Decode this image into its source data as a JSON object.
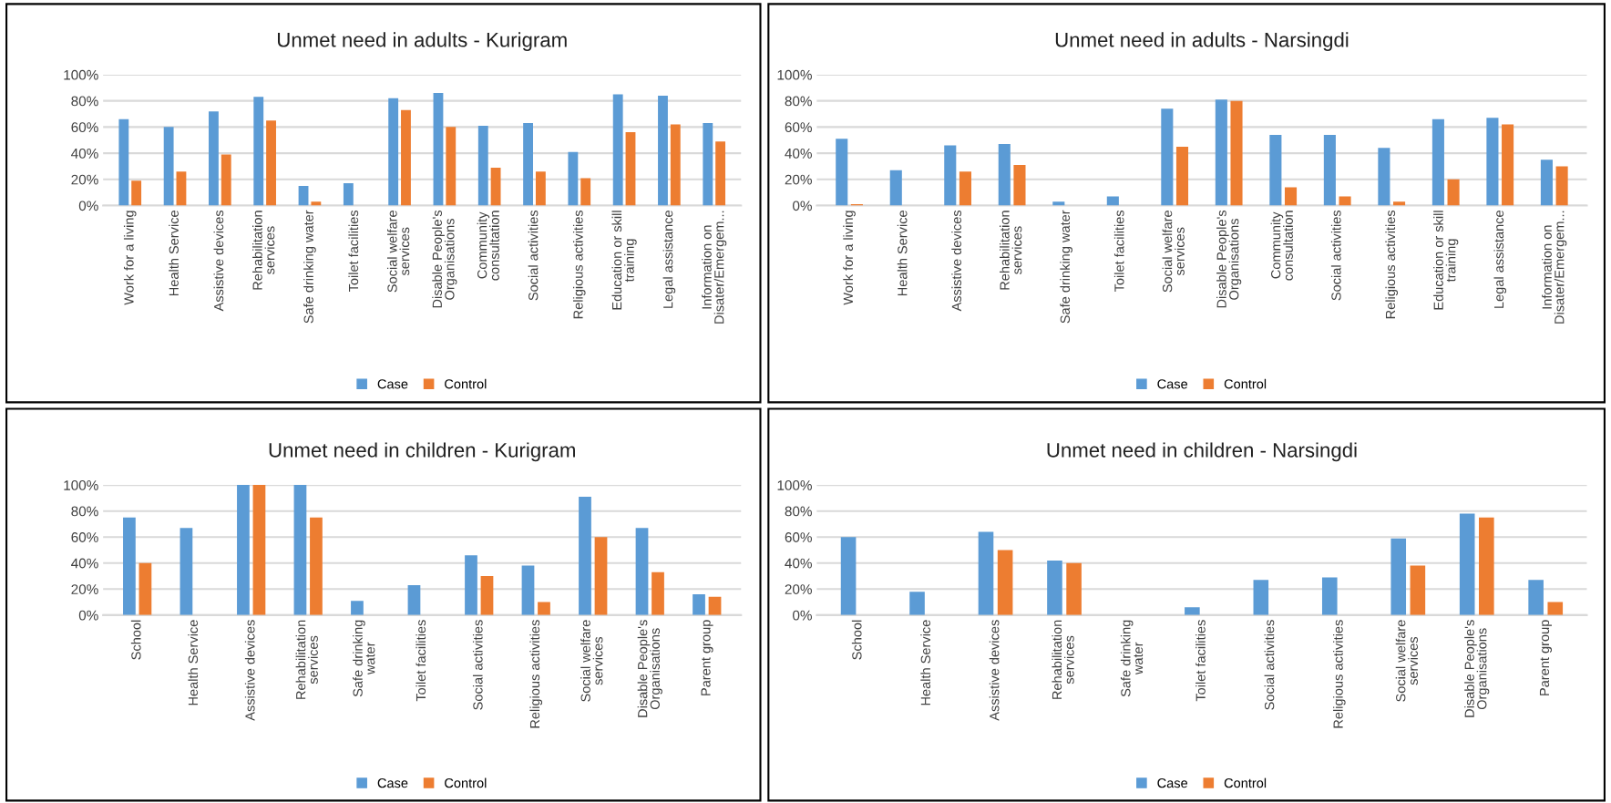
{
  "chart_data": [
    {
      "type": "bar",
      "title": "Unmet need in adults - Kurigram",
      "categories": [
        "Work for a living",
        "Health Service",
        "Assistive devices",
        "Rehabilitation\nservices",
        "Safe drinking water",
        "Toilet facilities",
        "Social welfare\nservices",
        "Disable People's\nOrganisations",
        "Community\nconsultation",
        "Social activities",
        "Religious activities",
        "Education or skill\ntraining",
        "Legal assistance",
        "Information on\nDisater/Emergem..."
      ],
      "series": [
        {
          "name": "Case",
          "color": "#5b9bd5",
          "values": [
            66,
            60,
            72,
            83,
            15,
            17,
            82,
            86,
            61,
            63,
            41,
            85,
            84,
            63
          ]
        },
        {
          "name": "Control",
          "color": "#ed7d31",
          "values": [
            19,
            26,
            39,
            65,
            3,
            0,
            73,
            60,
            29,
            26,
            21,
            56,
            62,
            49
          ]
        }
      ],
      "ylim": [
        0,
        100
      ],
      "yticks": [
        {
          "value": 0,
          "label": "0%"
        },
        {
          "value": 20,
          "label": "20%"
        },
        {
          "value": 40,
          "label": "40%"
        },
        {
          "value": 60,
          "label": "60%"
        },
        {
          "value": 80,
          "label": "80%"
        },
        {
          "value": 100,
          "label": "100%"
        }
      ],
      "grid": "y",
      "legend": "bottom"
    },
    {
      "type": "bar",
      "title": "Unmet need in adults - Narsingdi",
      "categories": [
        "Work for a living",
        "Health Service",
        "Assistive devices",
        "Rehabilitation\nservices",
        "Safe drinking water",
        "Toilet facilities",
        "Social welfare\nservices",
        "Disable People's\nOrganisations",
        "Community\nconsultation",
        "Social activities",
        "Religious activities",
        "Education or skill\ntraining",
        "Legal assistance",
        "Information on\nDisater/Emergem..."
      ],
      "series": [
        {
          "name": "Case",
          "color": "#5b9bd5",
          "values": [
            51,
            27,
            46,
            47,
            3,
            7,
            74,
            81,
            54,
            54,
            44,
            66,
            67,
            35
          ]
        },
        {
          "name": "Control",
          "color": "#ed7d31",
          "values": [
            1,
            0,
            26,
            31,
            0,
            0,
            45,
            80,
            14,
            7,
            3,
            20,
            62,
            30
          ]
        }
      ],
      "ylim": [
        0,
        100
      ],
      "yticks": [
        {
          "value": 0,
          "label": "0%"
        },
        {
          "value": 20,
          "label": "20%"
        },
        {
          "value": 40,
          "label": "40%"
        },
        {
          "value": 60,
          "label": "60%"
        },
        {
          "value": 80,
          "label": "80%"
        },
        {
          "value": 100,
          "label": "100%"
        }
      ],
      "grid": "y",
      "legend": "bottom"
    },
    {
      "type": "bar",
      "title": "Unmet need in children - Kurigram",
      "categories": [
        "School",
        "Health Service",
        "Assistive devices",
        "Rehabilitation\nservices",
        "Safe drinking\nwater",
        "Toilet facilities",
        "Social activities",
        "Religious activities",
        "Social welfare\nservices",
        "Disable People's\nOrganisations",
        "Parent group"
      ],
      "series": [
        {
          "name": "Case",
          "color": "#5b9bd5",
          "values": [
            75,
            67,
            100,
            100,
            11,
            23,
            46,
            38,
            91,
            67,
            16
          ]
        },
        {
          "name": "Control",
          "color": "#ed7d31",
          "values": [
            40,
            0,
            100,
            75,
            0,
            0,
            30,
            10,
            60,
            33,
            14
          ]
        }
      ],
      "ylim": [
        0,
        100
      ],
      "yticks": [
        {
          "value": 0,
          "label": "0%"
        },
        {
          "value": 20,
          "label": "20%"
        },
        {
          "value": 40,
          "label": "40%"
        },
        {
          "value": 60,
          "label": "60%"
        },
        {
          "value": 80,
          "label": "80%"
        },
        {
          "value": 100,
          "label": "100%"
        }
      ],
      "grid": "y",
      "legend": "bottom"
    },
    {
      "type": "bar",
      "title": "Unmet need in children - Narsingdi",
      "categories": [
        "School",
        "Health Service",
        "Assistive devices",
        "Rehabilitation\nservices",
        "Safe drinking\nwater",
        "Toilet facilities",
        "Social activities",
        "Religious activities",
        "Social welfare\nservices",
        "Disable People's\nOrganisations",
        "Parent group"
      ],
      "series": [
        {
          "name": "Case",
          "color": "#5b9bd5",
          "values": [
            60,
            18,
            64,
            42,
            0,
            6,
            27,
            29,
            59,
            78,
            27
          ]
        },
        {
          "name": "Control",
          "color": "#ed7d31",
          "values": [
            0,
            0,
            50,
            40,
            0,
            0,
            0,
            0,
            38,
            75,
            10
          ]
        }
      ],
      "ylim": [
        0,
        100
      ],
      "yticks": [
        {
          "value": 0,
          "label": "0%"
        },
        {
          "value": 20,
          "label": "20%"
        },
        {
          "value": 40,
          "label": "40%"
        },
        {
          "value": 60,
          "label": "60%"
        },
        {
          "value": 80,
          "label": "80%"
        },
        {
          "value": 100,
          "label": "100%"
        }
      ],
      "grid": "y",
      "legend": "bottom"
    }
  ]
}
